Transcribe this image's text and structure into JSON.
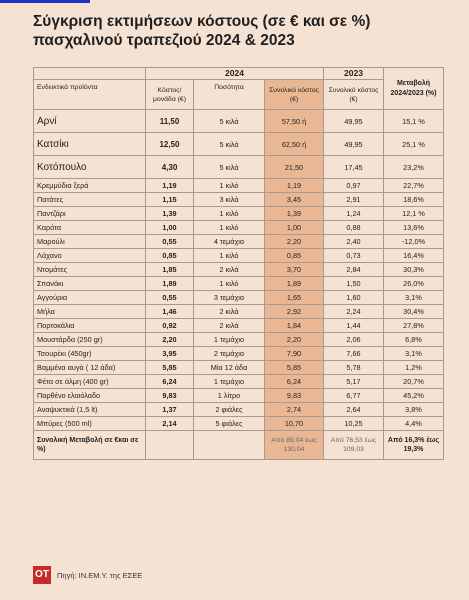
{
  "title": "Σύγκριση εκτιμήσεων κόστους (σε € και σε %) πασχαλινού τραπεζιού 2024 & 2023",
  "header": {
    "year_2024": "2024",
    "year_2023": "2023",
    "change": "Μεταβολή 2024/2023 (%)",
    "products": "Ενδεικτικά προϊόντα",
    "unit_cost": "Κόστος/ μονάδα (€)",
    "quantity": "Ποσότητα",
    "total_2024": "Συνολικό κόστος (€)",
    "total_2023": "Συνολικό κόστος (€)"
  },
  "meat_rows": [
    {
      "product": "Αρνί",
      "unit": "11,50",
      "qty": "5 κιλά",
      "total24": "57,50 ή",
      "total23": "49,95",
      "change": "15,1 %"
    },
    {
      "product": "Κατσίκι",
      "unit": "12,50",
      "qty": "5 κιλά",
      "total24": "62,50 ή",
      "total23": "49,95",
      "change": "25,1 %"
    },
    {
      "product": "Κοτόπουλο",
      "unit": "4,30",
      "qty": "5 κιλά",
      "total24": "21,50",
      "total23": "17,45",
      "change": "23,2%"
    }
  ],
  "rows": [
    {
      "product": "Κρεμμύδια ξερά",
      "unit": "1,19",
      "qty": "1 κιλό",
      "total24": "1,19",
      "total23": "0,97",
      "change": "22,7%"
    },
    {
      "product": "Πατάτες",
      "unit": "1,15",
      "qty": "3 κιλά",
      "total24": "3,45",
      "total23": "2,91",
      "change": "18,6%"
    },
    {
      "product": "Παντζάρι",
      "unit": "1,39",
      "qty": "1 κιλό",
      "total24": "1,39",
      "total23": "1,24",
      "change": "12,1 %"
    },
    {
      "product": "Καρότα",
      "unit": "1,00",
      "qty": "1 κιλό",
      "total24": "1,00",
      "total23": "0,88",
      "change": "13,6%"
    },
    {
      "product": "Μαρούλι",
      "unit": "0,55",
      "qty": "4 τεμάχια",
      "total24": "2,20",
      "total23": "2,40",
      "change": "-12,0%"
    },
    {
      "product": "Λάχανο",
      "unit": "0,85",
      "qty": "1 κιλό",
      "total24": "0,85",
      "total23": "0,73",
      "change": "16,4%"
    },
    {
      "product": "Ντομάτες",
      "unit": "1,85",
      "qty": "2 κιλά",
      "total24": "3,70",
      "total23": "2,84",
      "change": "30,3%"
    },
    {
      "product": "Σπανάκι",
      "unit": "1,89",
      "qty": "1 κιλό",
      "total24": "1,89",
      "total23": "1,50",
      "change": "26,0%"
    },
    {
      "product": "Αγγούρια",
      "unit": "0,55",
      "qty": "3 τεμάχια",
      "total24": "1,65",
      "total23": "1,60",
      "change": "3,1%"
    },
    {
      "product": "Μήλα",
      "unit": "1,46",
      "qty": "2 κιλά",
      "total24": "2,92",
      "total23": "2,24",
      "change": "30,4%"
    },
    {
      "product": "Πορτοκάλια",
      "unit": "0,92",
      "qty": "2 κιλά",
      "total24": "1,84",
      "total23": "1,44",
      "change": "27,8%"
    },
    {
      "product": "Μουστάρδα (250 gr)",
      "unit": "2,20",
      "qty": "1 τεμάχιο",
      "total24": "2,20",
      "total23": "2,06",
      "change": "6,8%"
    },
    {
      "product": "Τσουρέκι (450gr)",
      "unit": "3,95",
      "qty": "2 τεμάχια",
      "total24": "7,90",
      "total23": "7,66",
      "change": "3,1%"
    },
    {
      "product": "Βαμμένα αυγά ( 12 άδα)",
      "unit": "5,85",
      "qty": "Μία 12 άδα",
      "total24": "5,85",
      "total23": "5,78",
      "change": "1,2%"
    },
    {
      "product": "Φέτα σε άλμη (400 gr)",
      "unit": "6,24",
      "qty": "1 τεμάχιο",
      "total24": "6,24",
      "total23": "5,17",
      "change": "20,7%"
    },
    {
      "product": "Παρθένο ελαιόλαδο",
      "unit": "9,83",
      "qty": "1 λίτρο",
      "total24": "9,83",
      "total23": "6,77",
      "change": "45,2%"
    },
    {
      "product": "Αναψυκτικά (1,5 lt)",
      "unit": "1,37",
      "qty": "2 φιάλες",
      "total24": "2,74",
      "total23": "2,64",
      "change": "3,8%"
    },
    {
      "product": "Μπύρες (500 ml)",
      "unit": "2,14",
      "qty": "5 φιάλες",
      "total24": "10,70",
      "total23": "10,25",
      "change": "4,4%"
    }
  ],
  "total": {
    "label": "Συνολική Μεταβολή σε €και σε %)",
    "total24": "Από 89,04 έως 130,04",
    "total23": "Από 76,53 έως 109,03",
    "change": "Από 16,3% έως 19,3%"
  },
  "footer": {
    "logo": "OT",
    "source": "Πηγή: ΙΝ.ΕΜ.Υ. της ΕΣΕΕ"
  }
}
